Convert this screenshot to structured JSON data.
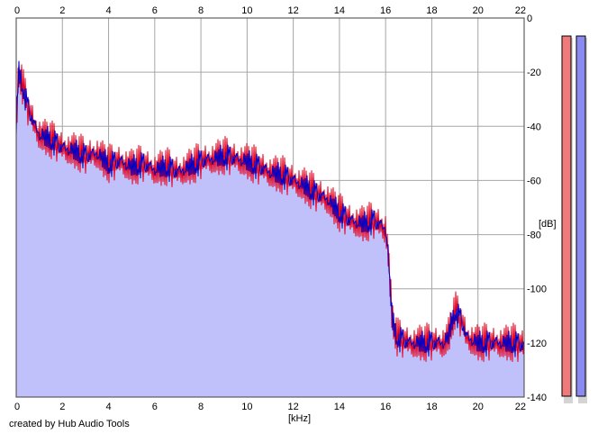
{
  "chart_data": {
    "type": "area",
    "title": "",
    "xlabel": "[kHz]",
    "ylabel": "[dB]",
    "xlim": [
      0,
      22
    ],
    "ylim": [
      -140,
      0
    ],
    "x_ticks": [
      0,
      2,
      4,
      6,
      8,
      10,
      12,
      14,
      16,
      18,
      20,
      22
    ],
    "x_tick_labels": [
      "0",
      "2",
      "4",
      "6",
      "8",
      "10",
      "12",
      "14",
      "16",
      "18",
      "20",
      "22"
    ],
    "y_ticks": [
      0,
      -20,
      -40,
      -60,
      -80,
      -100,
      -120,
      -140
    ],
    "y_tick_labels": [
      "0",
      "-20",
      "-40",
      "-60",
      "-80",
      "-100",
      "-120",
      "-140"
    ],
    "grid": true,
    "colors": {
      "area_fill": "#c0c0fa",
      "channel_1": "#e6001e",
      "channel_2": "#0000c8",
      "grid": "#a6a6a6",
      "meter_left": "#f07a7a",
      "meter_right": "#8a8af0"
    },
    "envelope": {
      "x": [
        0,
        0.1,
        0.2,
        0.3,
        0.5,
        0.8,
        1.0,
        1.5,
        2.0,
        2.5,
        3.0,
        3.5,
        4.0,
        4.5,
        5.0,
        5.5,
        6.0,
        6.5,
        7.0,
        7.5,
        8.0,
        8.5,
        9.0,
        9.5,
        10.0,
        10.5,
        11.0,
        11.5,
        12.0,
        12.5,
        13.0,
        13.5,
        14.0,
        14.5,
        15.0,
        15.5,
        16.0,
        16.1,
        16.2,
        16.3,
        16.5,
        17.0,
        17.5,
        18.0,
        18.5,
        18.7,
        19.0,
        19.3,
        19.5,
        20.0,
        20.5,
        21.0,
        21.5,
        22.0
      ],
      "y": [
        -40,
        -20,
        -22,
        -26,
        -33,
        -40,
        -43,
        -45,
        -48,
        -49,
        -51,
        -50,
        -54,
        -53,
        -55,
        -54,
        -56,
        -55,
        -57,
        -55,
        -53,
        -52,
        -51,
        -52,
        -53,
        -55,
        -57,
        -58,
        -60,
        -62,
        -65,
        -67,
        -72,
        -75,
        -76,
        -75,
        -78,
        -85,
        -100,
        -112,
        -118,
        -120,
        -120,
        -120,
        -120,
        -118,
        -108,
        -112,
        -118,
        -120,
        -120,
        -120,
        -120,
        -121
      ]
    },
    "noise": {
      "amplitude_db": 5,
      "pattern": [
        0.9,
        -0.7,
        0.4,
        -1.0,
        0.6,
        -0.3,
        1.0,
        -0.8,
        0.2,
        -0.5,
        0.8,
        -0.9,
        0.3,
        -0.2,
        0.7,
        -0.6,
        0.5,
        -1.0,
        0.9,
        -0.4,
        0.1,
        -0.8,
        0.6,
        -0.3,
        1.0,
        -0.7,
        0.4,
        -0.9,
        0.2,
        -0.5,
        0.8,
        -0.1
      ]
    },
    "series": [
      {
        "phase": 0,
        "scale": 1.0
      },
      {
        "phase": 11,
        "scale": 1.05
      }
    ],
    "meters": [
      {
        "level_db": 0
      },
      {
        "level_db": 0
      }
    ]
  },
  "credit": "created by Hub Audio Tools"
}
